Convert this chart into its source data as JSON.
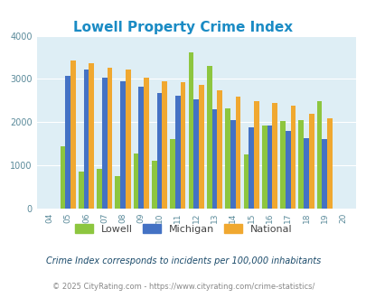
{
  "title": "Lowell Property Crime Index",
  "subtitle": "Crime Index corresponds to incidents per 100,000 inhabitants",
  "copyright": "© 2025 CityRating.com - https://www.cityrating.com/crime-statistics/",
  "years": [
    "04",
    "05",
    "06",
    "07",
    "08",
    "09",
    "10",
    "11",
    "12",
    "13",
    "14",
    "15",
    "16",
    "17",
    "18",
    "19",
    "20"
  ],
  "lowell": [
    0,
    1440,
    855,
    915,
    760,
    1280,
    1100,
    1600,
    3620,
    3300,
    2330,
    1260,
    1930,
    2020,
    2040,
    2480,
    0
  ],
  "michigan": [
    0,
    3080,
    3210,
    3040,
    2940,
    2820,
    2680,
    2620,
    2530,
    2300,
    2040,
    1890,
    1930,
    1800,
    1640,
    1600,
    0
  ],
  "national": [
    0,
    3420,
    3360,
    3260,
    3210,
    3040,
    2940,
    2930,
    2870,
    2740,
    2590,
    2490,
    2450,
    2380,
    2200,
    2100,
    0
  ],
  "lowell_color": "#8dc63f",
  "michigan_color": "#4472c4",
  "national_color": "#f0a830",
  "bg_color": "#deeef5",
  "title_color": "#1a8bc4",
  "axis_color": "#5a8a9a",
  "legend_text_color": "#444444",
  "subtitle_color": "#1a4a6a",
  "copyright_color": "#888888",
  "ylim": [
    0,
    4000
  ],
  "yticks": [
    0,
    1000,
    2000,
    3000,
    4000
  ]
}
